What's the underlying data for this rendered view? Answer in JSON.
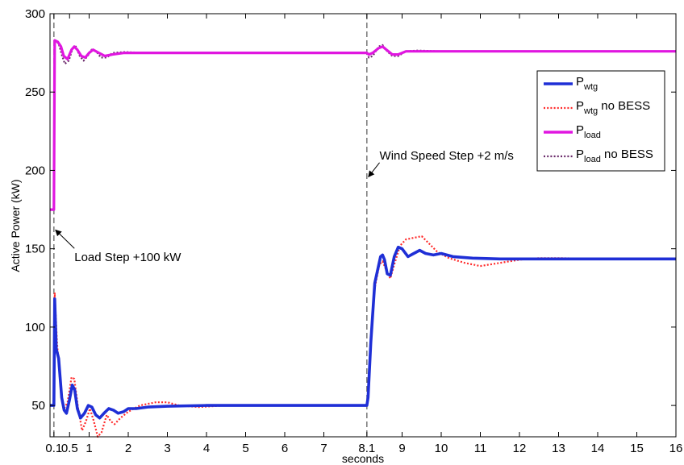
{
  "chart_data": {
    "type": "line",
    "title": "",
    "xlabel": "seconds",
    "ylabel": "Active Power (kW)",
    "xlim": [
      0,
      16
    ],
    "ylim": [
      30,
      300
    ],
    "grid": false,
    "legend_position": "top-right",
    "x_ticks": [
      {
        "v": 0.1,
        "label": "0.1"
      },
      {
        "v": 0.5,
        "label": "0.5"
      },
      {
        "v": 1,
        "label": "1"
      },
      {
        "v": 2,
        "label": "2"
      },
      {
        "v": 3,
        "label": "3"
      },
      {
        "v": 4,
        "label": "4"
      },
      {
        "v": 5,
        "label": "5"
      },
      {
        "v": 6,
        "label": "6"
      },
      {
        "v": 7,
        "label": "7"
      },
      {
        "v": 8.1,
        "label": "8.1"
      },
      {
        "v": 9,
        "label": "9"
      },
      {
        "v": 10,
        "label": "10"
      },
      {
        "v": 11,
        "label": "11"
      },
      {
        "v": 12,
        "label": "12"
      },
      {
        "v": 13,
        "label": "13"
      },
      {
        "v": 14,
        "label": "14"
      },
      {
        "v": 15,
        "label": "15"
      },
      {
        "v": 16,
        "label": "16"
      }
    ],
    "y_ticks": [
      {
        "v": 50,
        "label": "50"
      },
      {
        "v": 100,
        "label": "100"
      },
      {
        "v": 150,
        "label": "150"
      },
      {
        "v": 200,
        "label": "200"
      },
      {
        "v": 250,
        "label": "250"
      },
      {
        "v": 300,
        "label": "300"
      }
    ],
    "vlines": [
      0.1,
      8.1
    ],
    "annotations": [
      {
        "text": "Load Step +100 kW",
        "arrow_to": [
          0.1,
          163
        ],
        "text_at": [
          0.5,
          142
        ]
      },
      {
        "text": "Wind Speed Step +2 m/s",
        "arrow_to": [
          8.1,
          197
        ],
        "text_at": [
          8.3,
          207
        ]
      }
    ],
    "series": [
      {
        "name": "P",
        "name_sub": "wtg",
        "name_suffix": "",
        "color": "#1f2fd6",
        "style": "solid",
        "points": [
          [
            0.0,
            50
          ],
          [
            0.1,
            50
          ],
          [
            0.12,
            118
          ],
          [
            0.16,
            86
          ],
          [
            0.22,
            80
          ],
          [
            0.3,
            55
          ],
          [
            0.36,
            47
          ],
          [
            0.42,
            45
          ],
          [
            0.5,
            54
          ],
          [
            0.57,
            63
          ],
          [
            0.63,
            60
          ],
          [
            0.7,
            48
          ],
          [
            0.78,
            42
          ],
          [
            0.88,
            45
          ],
          [
            0.98,
            50
          ],
          [
            1.07,
            49
          ],
          [
            1.17,
            44
          ],
          [
            1.27,
            42
          ],
          [
            1.38,
            45
          ],
          [
            1.5,
            48
          ],
          [
            1.62,
            47
          ],
          [
            1.74,
            45
          ],
          [
            1.88,
            46
          ],
          [
            2.0,
            48
          ],
          [
            2.2,
            48
          ],
          [
            2.5,
            49
          ],
          [
            3.0,
            49.5
          ],
          [
            4.0,
            50
          ],
          [
            6.0,
            50
          ],
          [
            8.1,
            50
          ],
          [
            8.13,
            55
          ],
          [
            8.2,
            90
          ],
          [
            8.3,
            128
          ],
          [
            8.45,
            145
          ],
          [
            8.5,
            146
          ],
          [
            8.55,
            143
          ],
          [
            8.62,
            134
          ],
          [
            8.7,
            133
          ],
          [
            8.8,
            145
          ],
          [
            8.9,
            151
          ],
          [
            9.0,
            150
          ],
          [
            9.15,
            145
          ],
          [
            9.3,
            147
          ],
          [
            9.45,
            149
          ],
          [
            9.6,
            147
          ],
          [
            9.8,
            146
          ],
          [
            10.0,
            147
          ],
          [
            10.3,
            145
          ],
          [
            10.8,
            144
          ],
          [
            11.5,
            143.5
          ],
          [
            13.0,
            143.5
          ],
          [
            16.0,
            143.5
          ]
        ]
      },
      {
        "name": "P",
        "name_sub": "wtg",
        "name_suffix": " no BESS",
        "color": "#ff2a2a",
        "style": "dotted",
        "points": [
          [
            0.0,
            50
          ],
          [
            0.1,
            50
          ],
          [
            0.12,
            122
          ],
          [
            0.18,
            90
          ],
          [
            0.28,
            58
          ],
          [
            0.36,
            48
          ],
          [
            0.45,
            52
          ],
          [
            0.55,
            68
          ],
          [
            0.62,
            67
          ],
          [
            0.72,
            48
          ],
          [
            0.82,
            34
          ],
          [
            0.92,
            40
          ],
          [
            1.02,
            48
          ],
          [
            1.12,
            40
          ],
          [
            1.22,
            30
          ],
          [
            1.32,
            33
          ],
          [
            1.45,
            44
          ],
          [
            1.55,
            40
          ],
          [
            1.65,
            38
          ],
          [
            1.8,
            42
          ],
          [
            2.0,
            46
          ],
          [
            2.3,
            50
          ],
          [
            2.7,
            52
          ],
          [
            3.0,
            52
          ],
          [
            3.3,
            50
          ],
          [
            3.8,
            49
          ],
          [
            4.5,
            50
          ],
          [
            6.0,
            50
          ],
          [
            8.1,
            50
          ],
          [
            8.13,
            55
          ],
          [
            8.2,
            92
          ],
          [
            8.3,
            125
          ],
          [
            8.42,
            140
          ],
          [
            8.5,
            142
          ],
          [
            8.6,
            136
          ],
          [
            8.7,
            131
          ],
          [
            8.8,
            140
          ],
          [
            8.95,
            152
          ],
          [
            9.1,
            156
          ],
          [
            9.3,
            157
          ],
          [
            9.5,
            158
          ],
          [
            9.7,
            153
          ],
          [
            9.9,
            148
          ],
          [
            10.2,
            144
          ],
          [
            10.6,
            141
          ],
          [
            11.0,
            139
          ],
          [
            11.5,
            141
          ],
          [
            12.0,
            143
          ],
          [
            12.5,
            144
          ],
          [
            13.0,
            144
          ],
          [
            14.0,
            143.5
          ],
          [
            16.0,
            143.5
          ]
        ]
      },
      {
        "name": "P",
        "name_sub": "load",
        "name_suffix": "",
        "color": "#e016e0",
        "style": "solid",
        "points": [
          [
            0.0,
            175
          ],
          [
            0.1,
            175
          ],
          [
            0.12,
            283
          ],
          [
            0.2,
            282
          ],
          [
            0.28,
            279
          ],
          [
            0.35,
            273
          ],
          [
            0.45,
            271
          ],
          [
            0.55,
            277
          ],
          [
            0.62,
            279
          ],
          [
            0.7,
            277
          ],
          [
            0.8,
            273
          ],
          [
            0.9,
            272
          ],
          [
            1.0,
            275
          ],
          [
            1.1,
            277
          ],
          [
            1.25,
            275
          ],
          [
            1.4,
            273
          ],
          [
            1.6,
            274
          ],
          [
            1.9,
            275
          ],
          [
            2.5,
            275
          ],
          [
            4.0,
            275
          ],
          [
            6.0,
            275
          ],
          [
            8.1,
            275
          ],
          [
            8.15,
            274
          ],
          [
            8.25,
            275
          ],
          [
            8.4,
            278
          ],
          [
            8.5,
            279
          ],
          [
            8.6,
            277
          ],
          [
            8.75,
            274
          ],
          [
            8.9,
            274
          ],
          [
            9.1,
            276
          ],
          [
            9.4,
            276
          ],
          [
            10.0,
            276
          ],
          [
            12.0,
            276
          ],
          [
            16.0,
            276
          ]
        ]
      },
      {
        "name": "P",
        "name_sub": "load",
        "name_suffix": " no BESS",
        "color": "#6a2a6a",
        "style": "dotted",
        "points": [
          [
            0.0,
            175
          ],
          [
            0.1,
            175
          ],
          [
            0.12,
            283
          ],
          [
            0.22,
            281
          ],
          [
            0.3,
            274
          ],
          [
            0.38,
            268
          ],
          [
            0.48,
            270
          ],
          [
            0.58,
            278
          ],
          [
            0.66,
            279
          ],
          [
            0.76,
            273
          ],
          [
            0.86,
            270
          ],
          [
            0.96,
            273
          ],
          [
            1.06,
            277
          ],
          [
            1.18,
            276
          ],
          [
            1.3,
            272
          ],
          [
            1.45,
            272
          ],
          [
            1.6,
            275
          ],
          [
            1.9,
            275.5
          ],
          [
            2.5,
            275
          ],
          [
            4.0,
            275
          ],
          [
            6.0,
            275
          ],
          [
            8.1,
            275
          ],
          [
            8.15,
            272
          ],
          [
            8.25,
            273
          ],
          [
            8.4,
            279
          ],
          [
            8.5,
            280
          ],
          [
            8.62,
            276
          ],
          [
            8.75,
            273
          ],
          [
            8.9,
            273
          ],
          [
            9.1,
            276
          ],
          [
            9.4,
            276.5
          ],
          [
            10.0,
            276
          ],
          [
            12.0,
            276
          ],
          [
            16.0,
            276
          ]
        ]
      }
    ]
  }
}
